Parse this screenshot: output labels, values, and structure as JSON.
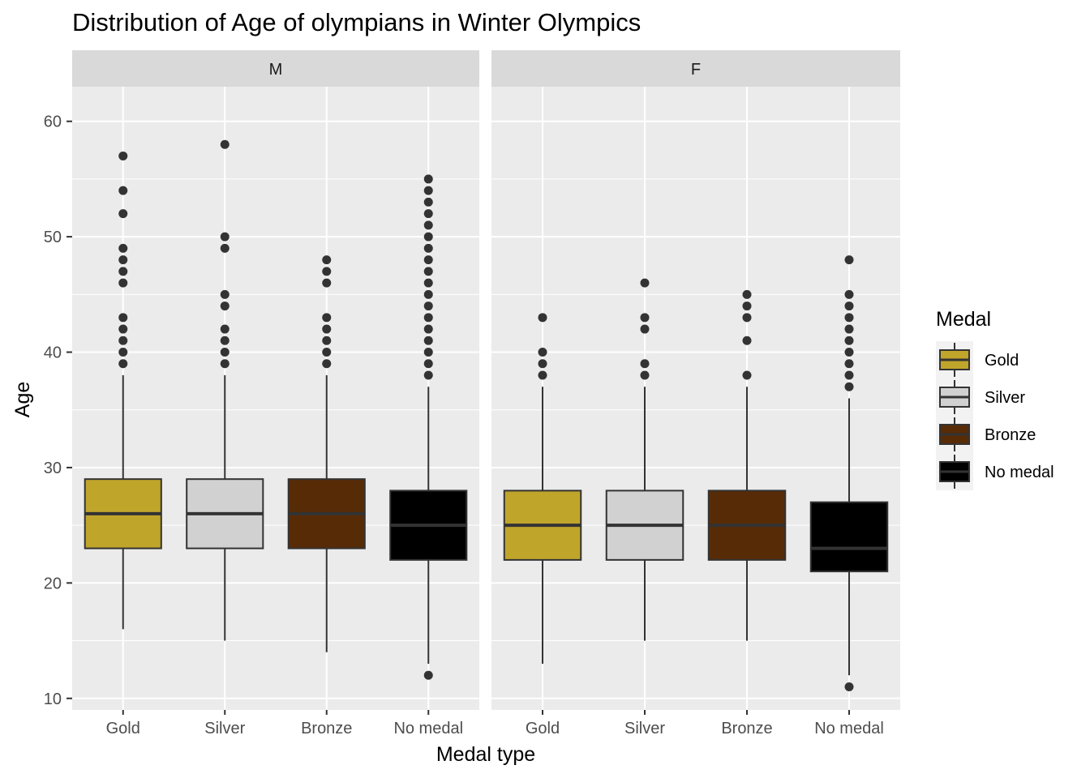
{
  "chart_data": {
    "type": "boxplot",
    "title": "Distribution of Age of olympians in Winter Olympics",
    "xlabel": "Medal type",
    "ylabel": "Age",
    "ylim": [
      9,
      63
    ],
    "yticks": [
      10,
      20,
      30,
      40,
      50,
      60
    ],
    "categories": [
      "Gold",
      "Silver",
      "Bronze",
      "No medal"
    ],
    "grid": true,
    "legend_position": "right",
    "legend": {
      "title": "Medal",
      "entries": [
        {
          "label": "Gold",
          "color": "#c0a52b"
        },
        {
          "label": "Silver",
          "color": "#d1d1d1"
        },
        {
          "label": "Bronze",
          "color": "#582b07"
        },
        {
          "label": "No medal",
          "color": "#000000"
        }
      ]
    },
    "facets": [
      {
        "label": "M",
        "boxes": [
          {
            "category": "Gold",
            "whisker_low": 16,
            "q1": 23,
            "median": 26,
            "q3": 29,
            "whisker_high": 38,
            "outliers": [
              39,
              40,
              41,
              42,
              43,
              46,
              47,
              48,
              49,
              52,
              54,
              57
            ]
          },
          {
            "category": "Silver",
            "whisker_low": 15,
            "q1": 23,
            "median": 26,
            "q3": 29,
            "whisker_high": 38,
            "outliers": [
              39,
              40,
              41,
              42,
              44,
              45,
              49,
              50,
              58
            ]
          },
          {
            "category": "Bronze",
            "whisker_low": 14,
            "q1": 23,
            "median": 26,
            "q3": 29,
            "whisker_high": 38,
            "outliers": [
              39,
              40,
              41,
              42,
              43,
              46,
              47,
              48
            ]
          },
          {
            "category": "No medal",
            "whisker_low": 13,
            "q1": 22,
            "median": 25,
            "q3": 28,
            "whisker_high": 37,
            "outliers": [
              12,
              38,
              39,
              40,
              41,
              42,
              43,
              44,
              45,
              46,
              47,
              48,
              49,
              50,
              51,
              52,
              53,
              54,
              55
            ]
          }
        ]
      },
      {
        "label": "F",
        "boxes": [
          {
            "category": "Gold",
            "whisker_low": 13,
            "q1": 22,
            "median": 25,
            "q3": 28,
            "whisker_high": 37,
            "outliers": [
              38,
              39,
              40,
              43
            ]
          },
          {
            "category": "Silver",
            "whisker_low": 15,
            "q1": 22,
            "median": 25,
            "q3": 28,
            "whisker_high": 37,
            "outliers": [
              38,
              39,
              42,
              43,
              46
            ]
          },
          {
            "category": "Bronze",
            "whisker_low": 15,
            "q1": 22,
            "median": 25,
            "q3": 28,
            "whisker_high": 37,
            "outliers": [
              38,
              41,
              43,
              44,
              45
            ]
          },
          {
            "category": "No medal",
            "whisker_low": 12,
            "q1": 21,
            "median": 23,
            "q3": 27,
            "whisker_high": 36,
            "outliers": [
              11,
              37,
              38,
              39,
              40,
              41,
              42,
              43,
              44,
              45,
              48
            ]
          }
        ]
      }
    ]
  }
}
